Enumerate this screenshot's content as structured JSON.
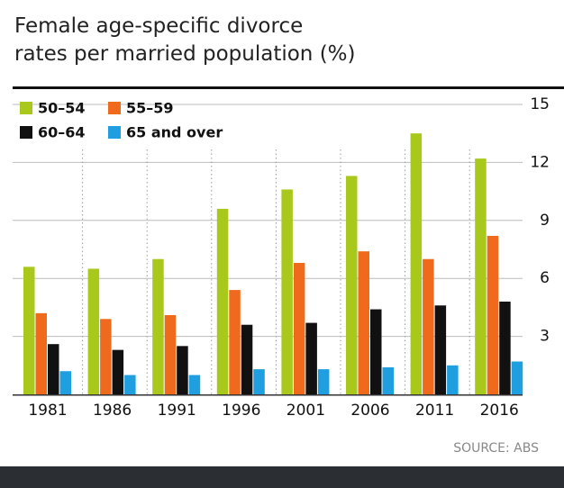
{
  "chart_data": {
    "type": "bar",
    "title": "Female age-specific divorce rates per married population (%)",
    "categories": [
      "1981",
      "1986",
      "1991",
      "1996",
      "2001",
      "2006",
      "2011",
      "2016"
    ],
    "series": [
      {
        "name": "50–54",
        "color": "#a8c81c",
        "values": [
          6.6,
          6.5,
          7.0,
          9.6,
          10.6,
          11.3,
          13.5,
          12.2
        ]
      },
      {
        "name": "55–59",
        "color": "#f06a1e",
        "values": [
          4.2,
          3.9,
          4.1,
          5.4,
          6.8,
          7.4,
          7.0,
          8.2
        ]
      },
      {
        "name": "60–64",
        "color": "#111111",
        "values": [
          2.6,
          2.3,
          2.5,
          3.6,
          3.7,
          4.4,
          4.6,
          4.8
        ]
      },
      {
        "name": "65 and over",
        "color": "#1f9fe0",
        "values": [
          1.2,
          1.0,
          1.0,
          1.3,
          1.3,
          1.4,
          1.5,
          1.7
        ]
      }
    ],
    "ylim": [
      0,
      15
    ],
    "yticks": [
      3,
      6,
      9,
      12,
      15
    ],
    "grid": true,
    "legend": "top-left",
    "source": "SOURCE: ABS"
  }
}
